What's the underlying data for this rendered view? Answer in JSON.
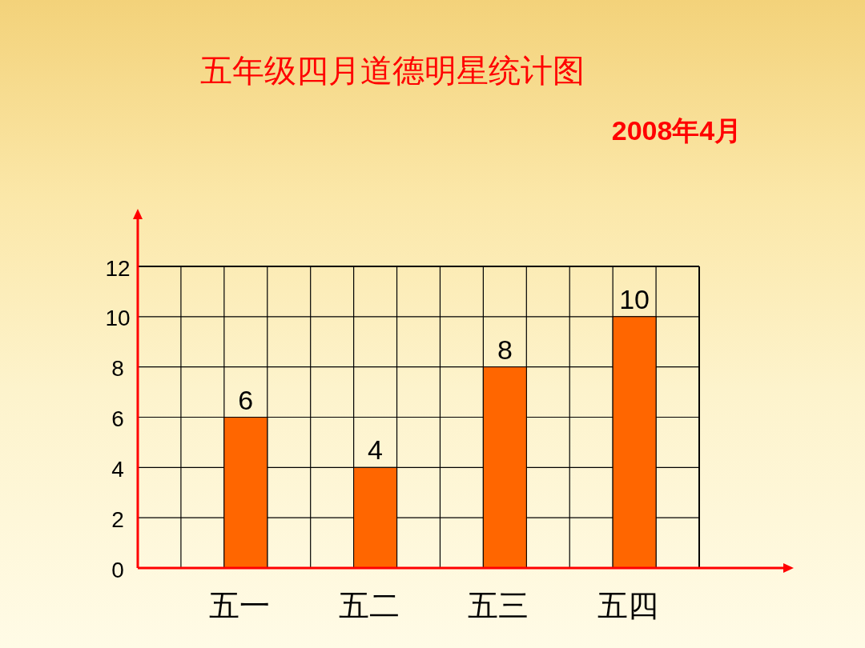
{
  "chart_data": {
    "type": "bar",
    "title": "五年级四月道德明星统计图",
    "subtitle": "2008年4月",
    "categories": [
      "五一",
      "五二",
      "五三",
      "五四"
    ],
    "values": [
      6,
      4,
      8,
      10
    ],
    "color": "#ff6600",
    "ylim": [
      0,
      12
    ],
    "yticks": [
      0,
      2,
      4,
      6,
      8,
      10,
      12
    ],
    "grid": true,
    "data_labels": true
  }
}
